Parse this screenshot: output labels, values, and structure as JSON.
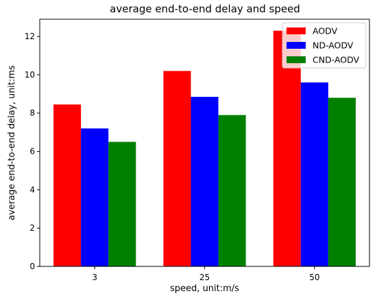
{
  "chart_data": {
    "type": "bar",
    "title": "average end-to-end delay and speed",
    "xlabel": "speed, unit:m/s",
    "ylabel": "average end-to-end delay, unit:ms",
    "categories": [
      "3",
      "25",
      "50"
    ],
    "series": [
      {
        "name": "AODV",
        "color": "#ff0000",
        "values": [
          8.45,
          10.2,
          12.3
        ]
      },
      {
        "name": "ND-AODV",
        "color": "#0000ff",
        "values": [
          7.2,
          8.85,
          9.6
        ]
      },
      {
        "name": "CND-AODV",
        "color": "#008000",
        "values": [
          6.5,
          7.9,
          8.8
        ]
      }
    ],
    "ylim": [
      0,
      12.9
    ],
    "yticks": [
      0,
      2,
      4,
      6,
      8,
      10,
      12
    ],
    "grid": false,
    "legend_position": "top-right"
  }
}
